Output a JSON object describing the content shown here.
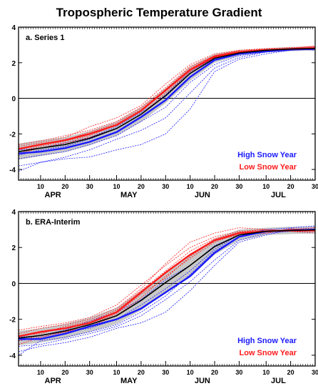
{
  "figure": {
    "title": "Tropospheric Temperature Gradient"
  },
  "colors": {
    "high": "#1a1aff",
    "low": "#ff1a1a",
    "mean": "#000000",
    "band": "#c8c8c8",
    "axis": "#000000"
  },
  "chart_data": [
    {
      "type": "line",
      "panel_label": "a. Series 1",
      "ylim": [
        -4.6,
        4
      ],
      "yticks": [
        -4,
        -2,
        0,
        2,
        4
      ],
      "xlim": [
        1,
        122
      ],
      "xticks": [
        {
          "x": 10,
          "label": "10"
        },
        {
          "x": 20,
          "label": "20"
        },
        {
          "x": 30,
          "label": "30"
        },
        {
          "x": 41,
          "label": "10"
        },
        {
          "x": 51,
          "label": "20"
        },
        {
          "x": 61,
          "label": "30"
        },
        {
          "x": 71,
          "label": "10"
        },
        {
          "x": 81,
          "label": "20"
        },
        {
          "x": 91,
          "label": "30"
        },
        {
          "x": 102,
          "label": "10"
        },
        {
          "x": 112,
          "label": "20"
        },
        {
          "x": 122,
          "label": "30"
        }
      ],
      "months": [
        {
          "x": 15,
          "label": "APR"
        },
        {
          "x": 46,
          "label": "MAY"
        },
        {
          "x": 76,
          "label": "JUN"
        },
        {
          "x": 107,
          "label": "JUL"
        }
      ],
      "zero_line": true,
      "legend": [
        "High Snow Year",
        "Low Snow Year"
      ],
      "legend_position": "lower-right",
      "x": [
        1,
        10,
        20,
        30,
        41,
        51,
        61,
        71,
        81,
        91,
        102,
        112,
        122
      ],
      "series": [
        {
          "name": "High Snow Year",
          "role": "high-mean",
          "values": [
            -3.1,
            -3.0,
            -2.8,
            -2.45,
            -1.9,
            -1.05,
            -0.1,
            1.2,
            2.15,
            2.5,
            2.65,
            2.75,
            2.78
          ]
        },
        {
          "name": "Low Snow Year",
          "role": "low-mean",
          "values": [
            -2.85,
            -2.6,
            -2.35,
            -2.0,
            -1.5,
            -0.7,
            0.45,
            1.6,
            2.35,
            2.6,
            2.72,
            2.78,
            2.82
          ]
        },
        {
          "name": "",
          "role": "mean",
          "values": [
            -3.0,
            -2.8,
            -2.6,
            -2.25,
            -1.7,
            -0.9,
            0.15,
            1.4,
            2.25,
            2.55,
            2.7,
            2.77,
            2.8
          ]
        }
      ],
      "band": {
        "half_width": [
          0.45,
          0.45,
          0.42,
          0.4,
          0.4,
          0.42,
          0.42,
          0.4,
          0.25,
          0.15,
          0.12,
          0.12,
          0.12
        ]
      },
      "members": {
        "high": [
          [
            -3.4,
            -3.2,
            -3.0,
            -2.6,
            -2.1,
            -1.3,
            -0.5,
            0.9,
            1.9,
            2.4,
            2.6,
            2.7,
            2.75
          ],
          [
            -3.8,
            -3.6,
            -3.3,
            -2.9,
            -2.3,
            -1.8,
            -1.1,
            0.3,
            1.7,
            2.3,
            2.6,
            2.7,
            2.8
          ],
          [
            -4.1,
            -3.6,
            -3.4,
            -3.3,
            -2.9,
            -2.6,
            -2.0,
            -0.6,
            1.5,
            2.2,
            2.5,
            2.7,
            2.75
          ],
          [
            -2.9,
            -2.8,
            -2.5,
            -2.2,
            -1.6,
            -0.8,
            0.1,
            1.4,
            2.2,
            2.5,
            2.65,
            2.8,
            2.85
          ],
          [
            -3.2,
            -2.9,
            -2.7,
            -2.3,
            -1.7,
            -0.9,
            0.2,
            1.5,
            2.3,
            2.6,
            2.7,
            2.8,
            2.7
          ]
        ],
        "low": [
          [
            -2.6,
            -2.4,
            -2.1,
            -1.8,
            -1.3,
            -0.5,
            0.6,
            1.8,
            2.4,
            2.7,
            2.8,
            2.85,
            2.9
          ],
          [
            -3.0,
            -2.7,
            -2.4,
            -2.1,
            -1.5,
            -0.7,
            0.5,
            1.6,
            2.3,
            2.6,
            2.7,
            2.75,
            2.8
          ],
          [
            -2.7,
            -2.5,
            -2.2,
            -1.6,
            -1.1,
            -0.4,
            0.8,
            1.9,
            2.5,
            2.7,
            2.75,
            2.8,
            2.85
          ],
          [
            -3.1,
            -2.8,
            -2.5,
            -2.2,
            -1.7,
            -0.9,
            0.3,
            1.5,
            2.3,
            2.55,
            2.7,
            2.75,
            2.9
          ],
          [
            -2.8,
            -2.6,
            -2.35,
            -1.9,
            -1.4,
            -0.6,
            0.5,
            1.7,
            2.4,
            2.65,
            2.75,
            2.8,
            2.95
          ]
        ]
      }
    },
    {
      "type": "line",
      "panel_label": "b. ERA-Interim",
      "ylim": [
        -4.6,
        4
      ],
      "yticks": [
        -4,
        -2,
        0,
        2,
        4
      ],
      "xlim": [
        1,
        122
      ],
      "xticks": [
        {
          "x": 10,
          "label": "10"
        },
        {
          "x": 20,
          "label": "20"
        },
        {
          "x": 30,
          "label": "30"
        },
        {
          "x": 41,
          "label": "10"
        },
        {
          "x": 51,
          "label": "20"
        },
        {
          "x": 61,
          "label": "30"
        },
        {
          "x": 71,
          "label": "10"
        },
        {
          "x": 81,
          "label": "20"
        },
        {
          "x": 91,
          "label": "30"
        },
        {
          "x": 102,
          "label": "10"
        },
        {
          "x": 112,
          "label": "20"
        },
        {
          "x": 122,
          "label": "30"
        }
      ],
      "months": [
        {
          "x": 15,
          "label": "APR"
        },
        {
          "x": 46,
          "label": "MAY"
        },
        {
          "x": 76,
          "label": "JUN"
        },
        {
          "x": 107,
          "label": "JUL"
        }
      ],
      "zero_line": true,
      "legend": [
        "High Snow Year",
        "Low Snow Year"
      ],
      "legend_position": "lower-right",
      "x": [
        1,
        10,
        20,
        30,
        41,
        51,
        61,
        71,
        81,
        91,
        102,
        112,
        122
      ],
      "series": [
        {
          "name": "High Snow Year",
          "role": "high-mean",
          "values": [
            -3.1,
            -3.1,
            -2.8,
            -2.4,
            -2.0,
            -1.4,
            -0.5,
            0.4,
            1.7,
            2.6,
            2.9,
            2.95,
            3.0
          ]
        },
        {
          "name": "Low Snow Year",
          "role": "low-mean",
          "values": [
            -2.95,
            -2.7,
            -2.5,
            -2.2,
            -1.6,
            -0.5,
            0.6,
            1.6,
            2.4,
            2.8,
            2.9,
            2.95,
            2.95
          ]
        },
        {
          "name": "",
          "role": "mean",
          "values": [
            -3.05,
            -2.9,
            -2.65,
            -2.3,
            -1.8,
            -0.95,
            0.05,
            1.0,
            2.05,
            2.7,
            2.9,
            2.95,
            2.98
          ]
        }
      ],
      "band": {
        "half_width": [
          0.4,
          0.4,
          0.4,
          0.4,
          0.45,
          0.55,
          0.55,
          0.55,
          0.45,
          0.3,
          0.2,
          0.2,
          0.2
        ]
      },
      "members": {
        "high": [
          [
            -3.5,
            -3.4,
            -3.1,
            -2.8,
            -2.4,
            -1.8,
            -0.9,
            0.1,
            1.3,
            2.4,
            2.8,
            2.9,
            2.8
          ],
          [
            -3.8,
            -3.5,
            -3.3,
            -3.0,
            -2.5,
            -2.2,
            -1.6,
            -0.4,
            1.0,
            2.3,
            2.7,
            3.0,
            3.1
          ],
          [
            -3.0,
            -2.9,
            -2.6,
            -2.1,
            -1.6,
            -0.9,
            0.2,
            1.0,
            2.1,
            2.7,
            3.0,
            3.1,
            3.2
          ],
          [
            -4.0,
            -3.2,
            -3.0,
            -2.7,
            -2.3,
            -1.6,
            -0.7,
            0.5,
            1.8,
            2.6,
            3.0,
            2.9,
            2.9
          ],
          [
            -3.2,
            -3.0,
            -2.7,
            -2.5,
            -2.0,
            -1.2,
            -0.3,
            0.7,
            1.9,
            2.7,
            2.85,
            3.05,
            2.95
          ]
        ],
        "low": [
          [
            -2.6,
            -2.4,
            -2.2,
            -1.9,
            -1.2,
            -0.1,
            1.0,
            2.0,
            2.6,
            2.9,
            3.0,
            2.9,
            2.9
          ],
          [
            -3.2,
            -2.9,
            -2.7,
            -2.4,
            -1.8,
            -0.8,
            0.4,
            1.4,
            2.3,
            2.8,
            2.9,
            3.0,
            3.1
          ],
          [
            -2.8,
            -2.5,
            -2.3,
            -2.0,
            -1.4,
            -0.3,
            1.1,
            2.3,
            2.8,
            3.1,
            3.0,
            2.9,
            2.8
          ],
          [
            -3.4,
            -3.0,
            -2.7,
            -2.3,
            -1.7,
            -0.6,
            0.3,
            1.5,
            2.4,
            2.7,
            2.8,
            3.05,
            2.95
          ],
          [
            -2.9,
            -2.8,
            -2.4,
            -2.1,
            -1.5,
            -0.4,
            0.7,
            1.8,
            2.5,
            2.85,
            3.0,
            2.95,
            3.0
          ]
        ]
      }
    }
  ]
}
